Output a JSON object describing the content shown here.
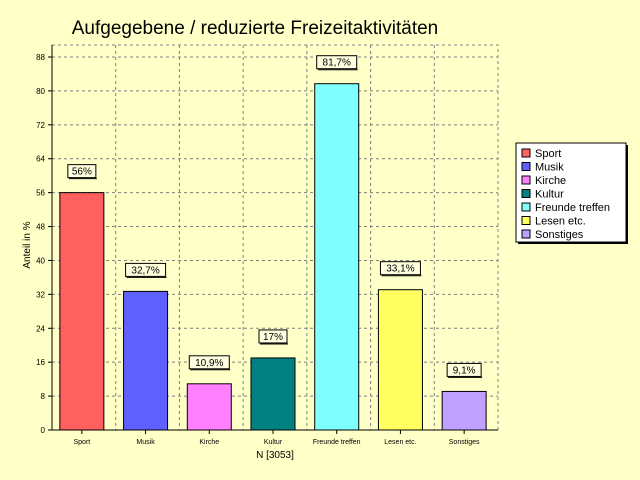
{
  "chart_data": {
    "type": "bar",
    "title": "Aufgegebene / reduzierte Freizeitaktivitäten",
    "ylabel": "Anteil in %",
    "xlabel": "N [3053]",
    "ylim": [
      0,
      88
    ],
    "yticks": [
      0,
      8,
      16,
      24,
      32,
      40,
      48,
      56,
      64,
      72,
      80,
      88
    ],
    "categories": [
      "Sport",
      "Musik",
      "Kirche",
      "Kultur",
      "Freunde treffen",
      "Lesen etc.",
      "Sonstiges"
    ],
    "axis_labels": [
      "Sport",
      "Musik",
      "Kirche",
      "Kultur",
      "Freunde treffen",
      "Lesen etc.",
      "Sonstiges"
    ],
    "values": [
      56,
      32.7,
      10.9,
      17,
      81.7,
      33.1,
      9.1
    ],
    "value_labels": [
      "56%",
      "32,7%",
      "10,9%",
      "17%",
      "81,7%",
      "33,1%",
      "9,1%"
    ],
    "colors": [
      "#ff6060",
      "#6060ff",
      "#ff80ff",
      "#008080",
      "#80ffff",
      "#ffff60",
      "#c0a0ff"
    ],
    "grid": true,
    "legend": {
      "position": "right",
      "entries": [
        "Sport",
        "Musik",
        "Kirche",
        "Kultur",
        "Freunde treffen",
        "Lesen etc.",
        "Sonstiges"
      ]
    }
  }
}
